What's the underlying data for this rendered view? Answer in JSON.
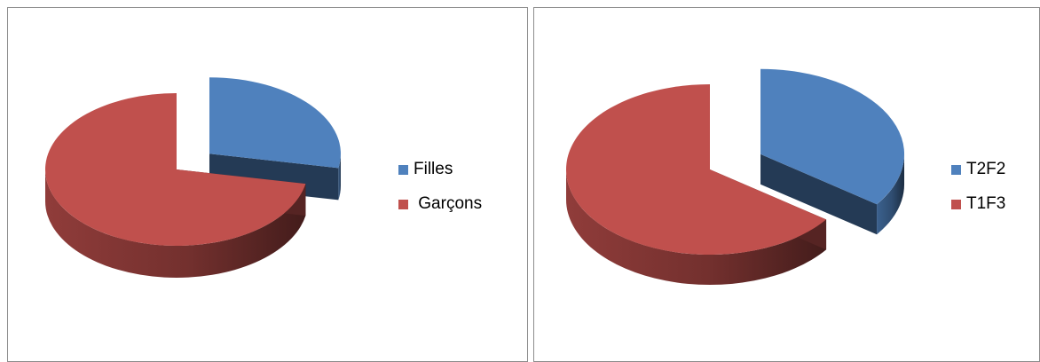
{
  "chart_data": [
    {
      "type": "pie",
      "style": "3d-exploded",
      "title": "",
      "categories": [
        "Filles",
        "Garçons"
      ],
      "values": [
        28,
        72
      ],
      "colors": [
        "#4f81bd",
        "#c0504d"
      ],
      "legend_position": "right",
      "legend_labels": [
        "Filles",
        " Garçons"
      ]
    },
    {
      "type": "pie",
      "style": "3d-exploded",
      "title": "",
      "categories": [
        "T2F2",
        "T1F3"
      ],
      "values": [
        35,
        65
      ],
      "colors": [
        "#4f81bd",
        "#c0504d"
      ],
      "legend_position": "right",
      "legend_labels": [
        "T2F2",
        "T1F3"
      ]
    }
  ]
}
